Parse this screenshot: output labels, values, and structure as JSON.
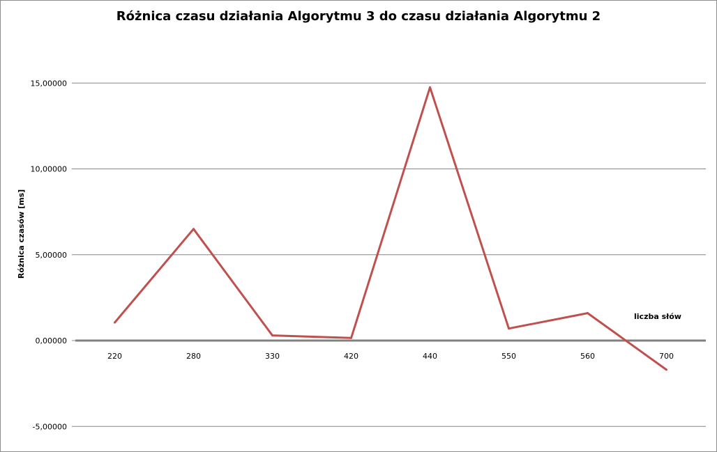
{
  "chart_data": {
    "type": "line",
    "title": "Różnica czasu działania Algorytmu 3 do czasu działania Algorytmu 2",
    "xlabel": "liczba słów",
    "ylabel": "Różnica czasów [ms]",
    "categories": [
      "220",
      "280",
      "330",
      "420",
      "440",
      "550",
      "560",
      "700"
    ],
    "series": [
      {
        "values": [
          1.05,
          6.5,
          0.3,
          0.15,
          14.75,
          0.7,
          1.6,
          -1.7
        ]
      }
    ],
    "ylim": [
      -5,
      15
    ],
    "yticks": [
      -5,
      0,
      5,
      10,
      15
    ],
    "ytick_labels": [
      "-5,00000",
      "0,00000",
      "5,00000",
      "10,00000",
      "15,00000"
    ],
    "grid": true,
    "legend": "none",
    "colors": {
      "series": "#c0504d",
      "grid": "#868686",
      "axis": "#808080"
    }
  }
}
